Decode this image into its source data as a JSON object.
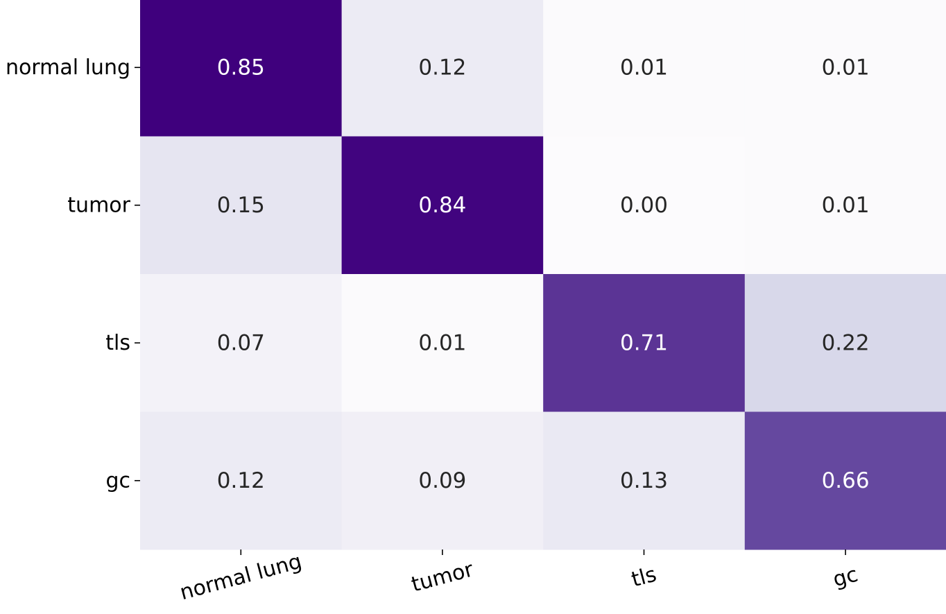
{
  "chart_data": {
    "type": "heatmap",
    "title": "",
    "xlabel": "",
    "ylabel": "",
    "x_categories": [
      "normal lung",
      "tumor",
      "tls",
      "gc"
    ],
    "y_categories": [
      "normal lung",
      "tumor",
      "tls",
      "gc"
    ],
    "values": [
      [
        0.85,
        0.12,
        0.01,
        0.01
      ],
      [
        0.15,
        0.84,
        0.0,
        0.01
      ],
      [
        0.07,
        0.01,
        0.71,
        0.22
      ],
      [
        0.12,
        0.09,
        0.13,
        0.66
      ]
    ],
    "value_format": "0.00",
    "colormap": "Purples",
    "vmin": 0,
    "vmax": 0.85,
    "colorbar": false,
    "grid": false,
    "x_tick_rotation_deg": -15,
    "colors": {
      "max": "#3f007d",
      "min": "#fcfbfd",
      "text_dark": "#262626",
      "text_light": "#ffffff"
    }
  }
}
